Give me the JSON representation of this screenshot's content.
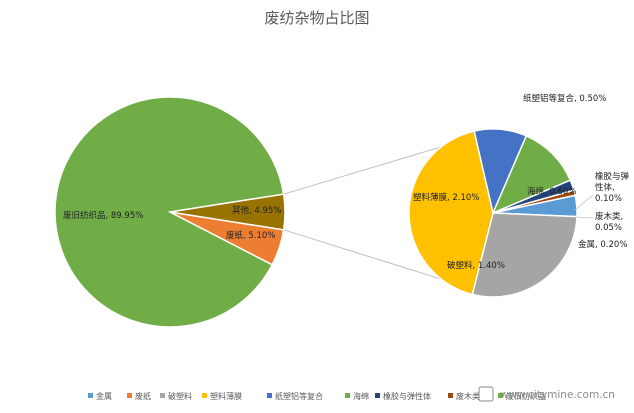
{
  "chart_data": {
    "type": "pie",
    "title": "废纺杂物占比图",
    "main_pie": {
      "slices": [
        {
          "name": "废旧纺织品",
          "value": 89.95,
          "label": "废旧纺织品, 89.95%",
          "color": "#70ad47"
        },
        {
          "name": "废纸",
          "value": 5.1,
          "label": "废纸, 5.10%",
          "color": "#ed7d31"
        },
        {
          "name": "其他",
          "value": 4.95,
          "label": "其他, 4.95%",
          "color": "#997300"
        }
      ]
    },
    "secondary_pie": {
      "slices": [
        {
          "name": "纸塑铝等复合",
          "value": 0.5,
          "label": "纸塑铝等复合, 0.50%",
          "color": "#4472c4"
        },
        {
          "name": "海绵",
          "value": 0.6,
          "label": "海绵, 0.60%",
          "color": "#70ad47"
        },
        {
          "name": "橡胶与弹性体",
          "value": 0.1,
          "label": "橡胶与弹性体, 0.10%",
          "color": "#264478"
        },
        {
          "name": "废木类",
          "value": 0.05,
          "label": "废木类, 0.05%",
          "color": "#9e480e"
        },
        {
          "name": "金属",
          "value": 0.2,
          "label": "金属, 0.20%",
          "color": "#5b9bd5"
        },
        {
          "name": "破塑料",
          "value": 1.4,
          "label": "破塑料, 1.40%",
          "color": "#a5a5a5"
        },
        {
          "name": "塑料薄膜",
          "value": 2.1,
          "label": "塑料薄膜, 2.10%",
          "color": "#ffc000"
        }
      ]
    },
    "legend": [
      {
        "name": "金属",
        "color": "#5b9bd5"
      },
      {
        "name": "废纸",
        "color": "#ed7d31"
      },
      {
        "name": "破塑料",
        "color": "#a5a5a5"
      },
      {
        "name": "塑料薄膜",
        "color": "#ffc000"
      },
      {
        "name": "纸塑铝等复合",
        "color": "#4472c4"
      },
      {
        "name": "海绵",
        "color": "#70ad47"
      },
      {
        "name": "橡胶与弹性体",
        "color": "#264478"
      },
      {
        "name": "废木类",
        "color": "#9e480e"
      },
      {
        "name": "废旧纺织品",
        "color": "#70ad47"
      }
    ],
    "legend_placement": "bottom"
  },
  "watermark": {
    "text": "www.citymine.com.cn"
  }
}
